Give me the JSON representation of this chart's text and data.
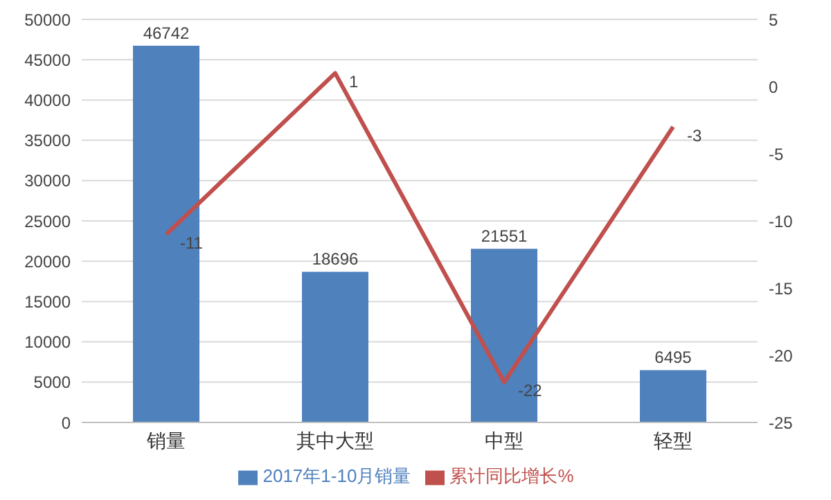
{
  "chart_data": {
    "type": "bar",
    "categories": [
      "销量",
      "其中大型",
      "中型",
      "轻型"
    ],
    "series": [
      {
        "name": "2017年1-10月销量",
        "color": "#4f81bd",
        "values": [
          46742,
          18696,
          21551,
          6495
        ]
      },
      {
        "name": "累计同比增长%",
        "type": "line",
        "axis": "y2",
        "color": "#c0504d",
        "values": [
          -11,
          1,
          -22,
          -3
        ]
      }
    ],
    "ylim": [
      0,
      50000
    ],
    "yticks": [
      0,
      5000,
      10000,
      15000,
      20000,
      25000,
      30000,
      35000,
      40000,
      45000,
      50000
    ],
    "y2lim": [
      -25,
      5
    ],
    "y2ticks": [
      -25,
      -20,
      -15,
      -10,
      -5,
      0,
      5
    ],
    "grid": "y",
    "legend": "bottom",
    "data_labels": true,
    "marker": "none",
    "line_style": "solid"
  }
}
